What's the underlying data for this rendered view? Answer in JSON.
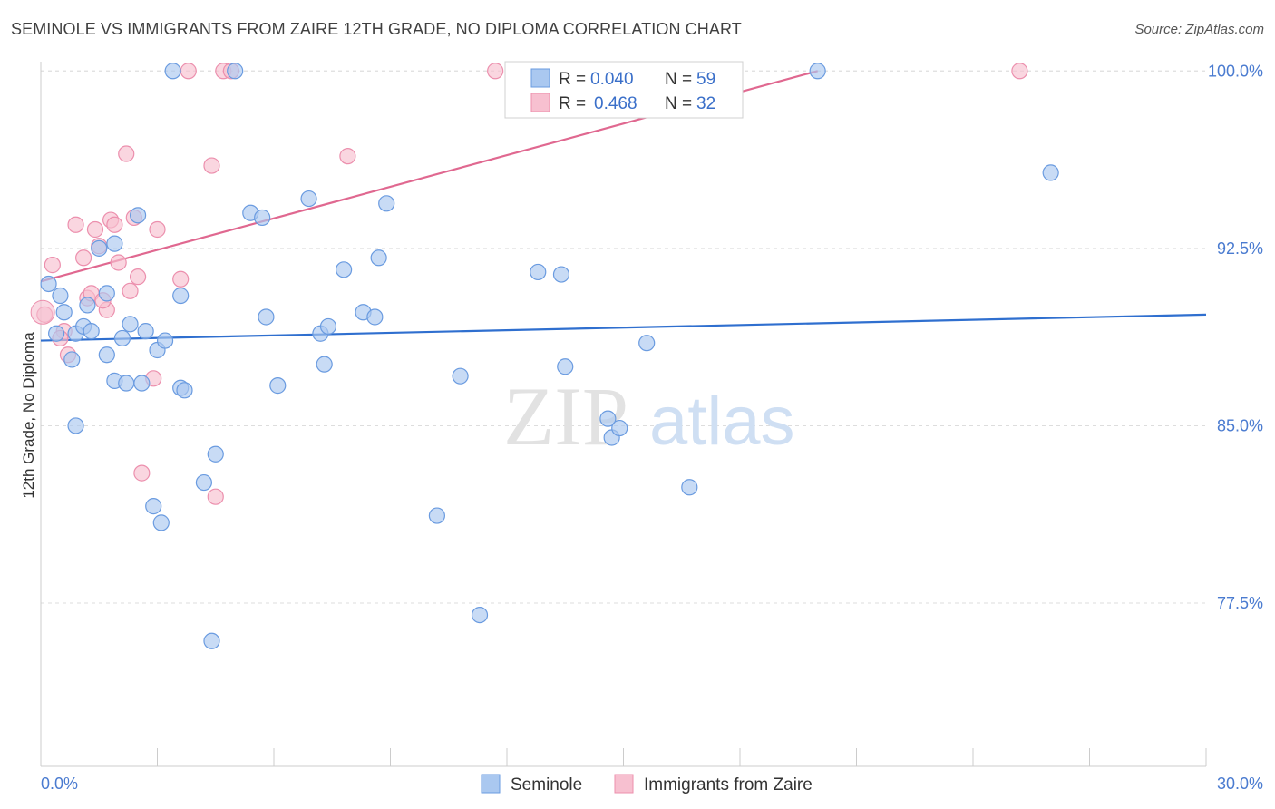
{
  "title": "SEMINOLE VS IMMIGRANTS FROM ZAIRE 12TH GRADE, NO DIPLOMA CORRELATION CHART",
  "source": "Source: ZipAtlas.com",
  "watermark": {
    "zip": "ZIP",
    "atlas": "atlas"
  },
  "colors": {
    "seminole_fill": "#aac8f0",
    "seminole_stroke": "#6a9be0",
    "seminole_line": "#2f6fcf",
    "zaire_fill": "#f7c0d0",
    "zaire_stroke": "#ec8fad",
    "zaire_line": "#e06890",
    "tick_text": "#4a7bd0",
    "grid": "#dddddd"
  },
  "legend": {
    "rows": [
      {
        "r_label": "R = ",
        "r_value": "0.040",
        "n_label": "N = ",
        "n_value": "59"
      },
      {
        "r_label": "R = ",
        "r_value": "0.468",
        "n_label": "N = ",
        "n_value": "32"
      }
    ]
  },
  "bottom_legend": [
    "Seminole",
    "Immigrants from Zaire"
  ],
  "chart_data": {
    "type": "scatter",
    "title": "SEMINOLE VS IMMIGRANTS FROM ZAIRE 12TH GRADE, NO DIPLOMA CORRELATION CHART",
    "xlabel": "",
    "ylabel": "12th Grade, No Diploma",
    "xlim": [
      0,
      30
    ],
    "ylim": [
      70.6,
      100.7
    ],
    "x_tick_labels": [
      "0.0%",
      "30.0%"
    ],
    "y_ticks": [
      77.5,
      85.0,
      92.5,
      100.0
    ],
    "y_tick_labels": [
      "77.5%",
      "85.0%",
      "92.5%",
      "100.0%"
    ],
    "grid": true,
    "legend_position": "top-center",
    "series": [
      {
        "name": "Seminole",
        "trend": {
          "x": [
            0.0,
            30.0
          ],
          "y": [
            88.6,
            89.7
          ]
        },
        "points": [
          [
            0.2,
            91.0
          ],
          [
            0.5,
            90.5
          ],
          [
            0.6,
            89.8
          ],
          [
            0.4,
            88.9
          ],
          [
            0.9,
            88.9
          ],
          [
            1.1,
            89.2
          ],
          [
            1.3,
            89.0
          ],
          [
            0.8,
            87.8
          ],
          [
            1.5,
            92.5
          ],
          [
            1.7,
            90.6
          ],
          [
            1.9,
            92.7
          ],
          [
            2.1,
            88.7
          ],
          [
            2.3,
            89.3
          ],
          [
            2.5,
            93.9
          ],
          [
            2.7,
            89.0
          ],
          [
            3.0,
            88.2
          ],
          [
            3.2,
            88.6
          ],
          [
            3.6,
            86.6
          ],
          [
            3.7,
            86.5
          ],
          [
            3.6,
            90.5
          ],
          [
            2.9,
            81.6
          ],
          [
            3.1,
            80.9
          ],
          [
            1.9,
            86.9
          ],
          [
            2.2,
            86.8
          ],
          [
            2.6,
            86.8
          ],
          [
            0.9,
            85.0
          ],
          [
            4.5,
            83.8
          ],
          [
            4.2,
            82.6
          ],
          [
            4.4,
            75.9
          ],
          [
            5.4,
            94.0
          ],
          [
            5.7,
            93.8
          ],
          [
            5.8,
            89.6
          ],
          [
            6.1,
            86.7
          ],
          [
            6.9,
            94.6
          ],
          [
            7.2,
            88.9
          ],
          [
            7.4,
            89.2
          ],
          [
            7.3,
            87.6
          ],
          [
            7.8,
            91.6
          ],
          [
            8.3,
            89.8
          ],
          [
            8.6,
            89.6
          ],
          [
            8.7,
            92.1
          ],
          [
            8.9,
            94.4
          ],
          [
            10.2,
            81.2
          ],
          [
            10.8,
            87.1
          ],
          [
            11.3,
            77.0
          ],
          [
            12.8,
            91.5
          ],
          [
            13.4,
            91.4
          ],
          [
            13.5,
            87.5
          ],
          [
            14.6,
            85.3
          ],
          [
            14.7,
            84.5
          ],
          [
            14.9,
            84.9
          ],
          [
            15.6,
            88.5
          ],
          [
            16.7,
            82.4
          ],
          [
            20.0,
            100.0
          ],
          [
            26.0,
            95.7
          ],
          [
            3.4,
            100.0
          ],
          [
            5.0,
            100.0
          ],
          [
            1.7,
            88.0
          ],
          [
            1.2,
            90.1
          ]
        ]
      },
      {
        "name": "Immigrants from Zaire",
        "trend": {
          "x": [
            0.0,
            20.0
          ],
          "y": [
            91.1,
            100.0
          ]
        },
        "points": [
          [
            0.1,
            89.7
          ],
          [
            0.3,
            91.8
          ],
          [
            0.6,
            89.0
          ],
          [
            0.5,
            88.7
          ],
          [
            0.7,
            88.0
          ],
          [
            0.9,
            93.5
          ],
          [
            1.1,
            92.1
          ],
          [
            1.2,
            90.4
          ],
          [
            1.3,
            90.6
          ],
          [
            1.4,
            93.3
          ],
          [
            1.5,
            92.6
          ],
          [
            1.7,
            89.9
          ],
          [
            1.8,
            93.7
          ],
          [
            1.9,
            93.5
          ],
          [
            2.0,
            91.9
          ],
          [
            2.2,
            96.5
          ],
          [
            2.3,
            90.7
          ],
          [
            2.4,
            93.8
          ],
          [
            2.5,
            91.3
          ],
          [
            2.6,
            83.0
          ],
          [
            2.9,
            87.0
          ],
          [
            3.0,
            93.3
          ],
          [
            3.6,
            91.2
          ],
          [
            3.8,
            100.0
          ],
          [
            4.4,
            96.0
          ],
          [
            4.5,
            82.0
          ],
          [
            4.7,
            100.0
          ],
          [
            4.9,
            100.0
          ],
          [
            7.9,
            96.4
          ],
          [
            11.7,
            100.0
          ],
          [
            25.2,
            100.0
          ],
          [
            1.6,
            90.3
          ]
        ]
      }
    ]
  }
}
